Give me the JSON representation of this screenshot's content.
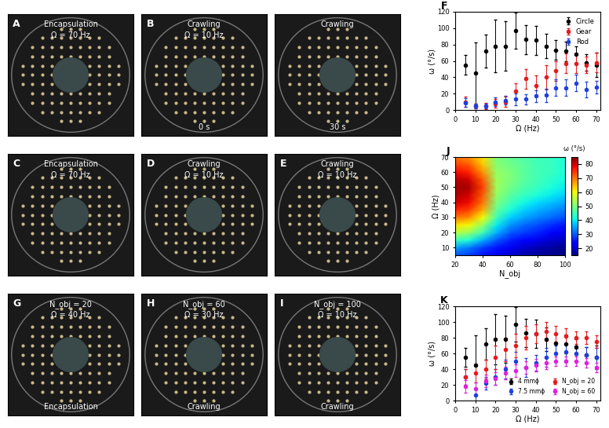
{
  "photos": [
    {
      "label": "A",
      "frames": [
        {
          "top": [
            "Encapsulation",
            "Ω = 70 Hz"
          ],
          "bottom": []
        }
      ]
    },
    {
      "label": "B",
      "frames": [
        {
          "top": [
            "Crawling",
            "Ω = 10 Hz"
          ],
          "bottom": [
            "0 s"
          ]
        },
        {
          "top": [
            "Crawling"
          ],
          "bottom": [
            "30 s"
          ]
        }
      ]
    },
    {
      "label": "C",
      "frames": [
        {
          "top": [
            "Encapsulation",
            "Ω = 70 Hz"
          ],
          "bottom": []
        }
      ]
    },
    {
      "label": "D",
      "frames": [
        {
          "top": [
            "Crawling",
            "Ω = 10 Hz"
          ],
          "bottom": []
        }
      ]
    },
    {
      "label": "E",
      "frames": [
        {
          "top": [
            "Crawling",
            "Ω = 10 Hz"
          ],
          "bottom": []
        }
      ]
    },
    {
      "label": "G",
      "frames": [
        {
          "top": [
            "N_obj = 20",
            "Ω = 40 Hz"
          ],
          "bottom": [
            "Encapsulation"
          ]
        }
      ]
    },
    {
      "label": "H",
      "frames": [
        {
          "top": [
            "N_obj = 60",
            "Ω = 30 Hz"
          ],
          "bottom": [
            "Crawling"
          ]
        }
      ]
    },
    {
      "label": "I",
      "frames": [
        {
          "top": [
            "N_obj = 100",
            "Ω = 10 Hz"
          ],
          "bottom": [
            "Crawling"
          ]
        }
      ]
    }
  ],
  "chart_data": [
    {
      "label": "F",
      "type": "errorbar",
      "x_label": "Ω (Hz)",
      "y_label": "ω (°/s)",
      "x": [
        5,
        10,
        15,
        20,
        25,
        30,
        35,
        40,
        45,
        50,
        55,
        60,
        65,
        70
      ],
      "xlim": [
        0,
        72
      ],
      "xticks": [
        0,
        10,
        20,
        30,
        40,
        50,
        60,
        70
      ],
      "ylim": [
        0,
        120
      ],
      "yticks": [
        0,
        20,
        40,
        60,
        80,
        100,
        120
      ],
      "legend": "upper right",
      "marker": "circle",
      "series": [
        {
          "name": "Circle",
          "color": "#000000",
          "values": [
            55,
            45,
            72,
            78,
            78,
            97,
            86,
            85,
            78,
            73,
            72,
            68,
            58,
            55
          ],
          "errors": [
            12,
            38,
            20,
            32,
            30,
            22,
            18,
            18,
            15,
            12,
            12,
            10,
            10,
            15
          ]
        },
        {
          "name": "Gear",
          "color": "#e8191c",
          "values": [
            10,
            5,
            5,
            8,
            10,
            23,
            38,
            30,
            40,
            48,
            57,
            57,
            55,
            58
          ],
          "errors": [
            6,
            3,
            4,
            5,
            6,
            10,
            12,
            12,
            15,
            12,
            12,
            12,
            10,
            12
          ]
        },
        {
          "name": "Rod",
          "color": "#1f3fe0",
          "values": [
            9,
            5,
            5,
            10,
            12,
            13,
            13,
            17,
            18,
            27,
            27,
            33,
            25,
            28
          ],
          "errors": [
            5,
            3,
            3,
            5,
            5,
            7,
            6,
            7,
            8,
            10,
            10,
            10,
            10,
            8
          ]
        }
      ]
    },
    {
      "label": "J",
      "type": "heatmap",
      "x_label": "N_obj",
      "y_label": "Ω (Hz)",
      "color": "jet",
      "x": [
        20,
        30,
        40,
        50,
        60,
        70,
        80,
        90,
        100
      ],
      "y": [
        5,
        10,
        15,
        20,
        25,
        30,
        35,
        40,
        45,
        50,
        55,
        60,
        65,
        70
      ],
      "xlim": [
        20,
        100
      ],
      "xticks": [
        20,
        40,
        60,
        80,
        100
      ],
      "ylim": [
        5,
        70
      ],
      "yticks": [
        10,
        20,
        30,
        40,
        50,
        60,
        70
      ],
      "cells": [
        [
          30,
          28,
          25,
          22,
          20,
          18,
          17,
          16,
          15
        ],
        [
          35,
          32,
          28,
          25,
          22,
          20,
          18,
          17,
          16
        ],
        [
          45,
          42,
          36,
          30,
          26,
          24,
          22,
          20,
          19
        ],
        [
          55,
          52,
          45,
          36,
          30,
          28,
          26,
          24,
          22
        ],
        [
          62,
          60,
          52,
          40,
          34,
          31,
          29,
          27,
          25
        ],
        [
          70,
          68,
          60,
          45,
          38,
          35,
          33,
          31,
          29
        ],
        [
          76,
          74,
          66,
          48,
          42,
          38,
          36,
          34,
          32
        ],
        [
          80,
          78,
          70,
          50,
          45,
          41,
          39,
          37,
          35
        ],
        [
          82,
          80,
          72,
          52,
          47,
          44,
          42,
          40,
          38
        ],
        [
          83,
          82,
          74,
          53,
          49,
          46,
          44,
          42,
          40
        ],
        [
          82,
          80,
          72,
          53,
          50,
          47,
          45,
          43,
          41
        ],
        [
          78,
          76,
          68,
          52,
          50,
          47,
          45,
          44,
          42
        ],
        [
          74,
          72,
          64,
          51,
          49,
          47,
          45,
          44,
          42
        ],
        [
          70,
          68,
          62,
          50,
          48,
          46,
          45,
          44,
          42
        ]
      ],
      "colorbar": {
        "label": "ω (°/s)",
        "range": [
          15,
          85
        ],
        "ticks": [
          20,
          30,
          40,
          50,
          60,
          70,
          80
        ]
      }
    },
    {
      "label": "K",
      "type": "errorbar",
      "x_label": "Ω (Hz)",
      "y_label": "ω (°/s)",
      "x": [
        5,
        10,
        15,
        20,
        25,
        30,
        35,
        40,
        45,
        50,
        55,
        60,
        65,
        70
      ],
      "xlim": [
        0,
        72
      ],
      "xticks": [
        0,
        10,
        20,
        30,
        40,
        50,
        60,
        70
      ],
      "ylim": [
        0,
        120
      ],
      "yticks": [
        0,
        20,
        40,
        60,
        80,
        100,
        120
      ],
      "legend": "lower right",
      "marker": "circle",
      "series": [
        {
          "name": "4 mmϕ",
          "color": "#000000",
          "values": [
            55,
            45,
            72,
            78,
            78,
            97,
            86,
            85,
            78,
            73,
            72,
            68,
            58,
            55
          ],
          "errors": [
            12,
            38,
            20,
            32,
            30,
            22,
            18,
            18,
            15,
            12,
            12,
            10,
            10,
            15
          ]
        },
        {
          "name": "7.5 mmϕ",
          "color": "#1f3fe0",
          "values": [
            30,
            7,
            22,
            30,
            40,
            50,
            42,
            48,
            55,
            60,
            62,
            60,
            58,
            55
          ],
          "errors": [
            10,
            8,
            8,
            10,
            12,
            12,
            12,
            10,
            12,
            10,
            10,
            10,
            10,
            12
          ]
        },
        {
          "name": "N_obj = 20",
          "color": "#e8191c",
          "values": [
            30,
            35,
            40,
            55,
            65,
            70,
            80,
            85,
            88,
            85,
            82,
            80,
            80,
            75
          ],
          "errors": [
            10,
            12,
            12,
            15,
            15,
            15,
            15,
            12,
            12,
            10,
            10,
            8,
            8,
            8
          ]
        },
        {
          "name": "N_obj = 60",
          "color": "#e020e0",
          "values": [
            18,
            15,
            25,
            28,
            35,
            38,
            42,
            45,
            48,
            50,
            50,
            50,
            48,
            42
          ],
          "errors": [
            8,
            8,
            8,
            8,
            8,
            8,
            8,
            8,
            8,
            6,
            6,
            6,
            6,
            6
          ]
        }
      ]
    }
  ]
}
